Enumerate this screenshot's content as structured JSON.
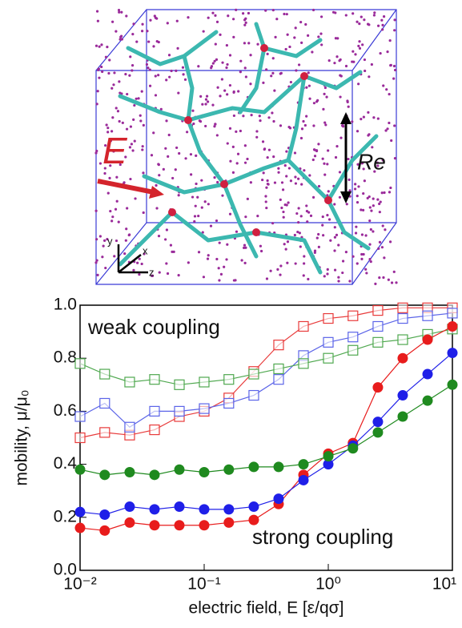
{
  "illustration": {
    "field_label": "E",
    "size_label": "Re",
    "axis_labels": [
      "y",
      "x",
      "z"
    ]
  },
  "chart_data": {
    "type": "line",
    "x_label": "electric field, E [ε/qσ]",
    "y_label": "mobility, μ/μ₀",
    "annotations": [
      "weak coupling",
      "strong coupling"
    ],
    "x_scale": "log",
    "xlim": [
      0.01,
      10
    ],
    "xticks": [
      {
        "value": 0.01,
        "label": "10⁻²"
      },
      {
        "value": 0.1,
        "label": "10⁻¹"
      },
      {
        "value": 1,
        "label": "10⁰"
      },
      {
        "value": 10,
        "label": "10¹"
      }
    ],
    "ylim": [
      0,
      1
    ],
    "yticks": [
      {
        "value": 0,
        "label": "0.0"
      },
      0.2,
      0.4,
      0.6,
      0.8,
      {
        "value": 1,
        "label": "1.0"
      }
    ],
    "x": [
      0.01,
      0.0158,
      0.0251,
      0.0398,
      0.0631,
      0.1,
      0.158,
      0.251,
      0.398,
      0.631,
      1,
      1.58,
      2.51,
      3.98,
      6.31,
      10
    ],
    "series": [
      {
        "color": "#e83a3a",
        "marker": "square-open",
        "values": [
          0.5,
          0.52,
          0.51,
          0.53,
          0.58,
          0.6,
          0.65,
          0.75,
          0.85,
          0.92,
          0.95,
          0.96,
          0.98,
          0.99,
          0.99,
          0.99
        ]
      },
      {
        "color": "#5b64e8",
        "marker": "square-open",
        "values": [
          0.58,
          0.63,
          0.54,
          0.6,
          0.6,
          0.61,
          0.63,
          0.66,
          0.72,
          0.81,
          0.86,
          0.88,
          0.92,
          0.95,
          0.96,
          0.97
        ]
      },
      {
        "color": "#4fa84f",
        "marker": "square-open",
        "values": [
          0.78,
          0.74,
          0.71,
          0.72,
          0.7,
          0.71,
          0.72,
          0.74,
          0.76,
          0.78,
          0.8,
          0.83,
          0.86,
          0.87,
          0.89,
          0.91
        ]
      },
      {
        "color": "#e81c1c",
        "marker": "circle",
        "values": [
          0.16,
          0.15,
          0.18,
          0.17,
          0.17,
          0.17,
          0.18,
          0.19,
          0.25,
          0.36,
          0.44,
          0.48,
          0.69,
          0.8,
          0.87,
          0.92
        ]
      },
      {
        "color": "#1f1fe8",
        "marker": "circle",
        "values": [
          0.22,
          0.21,
          0.24,
          0.23,
          0.24,
          0.23,
          0.23,
          0.24,
          0.27,
          0.34,
          0.4,
          0.47,
          0.56,
          0.66,
          0.74,
          0.82
        ]
      },
      {
        "color": "#1f8a1f",
        "marker": "circle",
        "values": [
          0.38,
          0.36,
          0.37,
          0.36,
          0.38,
          0.37,
          0.38,
          0.39,
          0.39,
          0.4,
          0.43,
          0.46,
          0.52,
          0.58,
          0.64,
          0.7
        ]
      }
    ]
  }
}
